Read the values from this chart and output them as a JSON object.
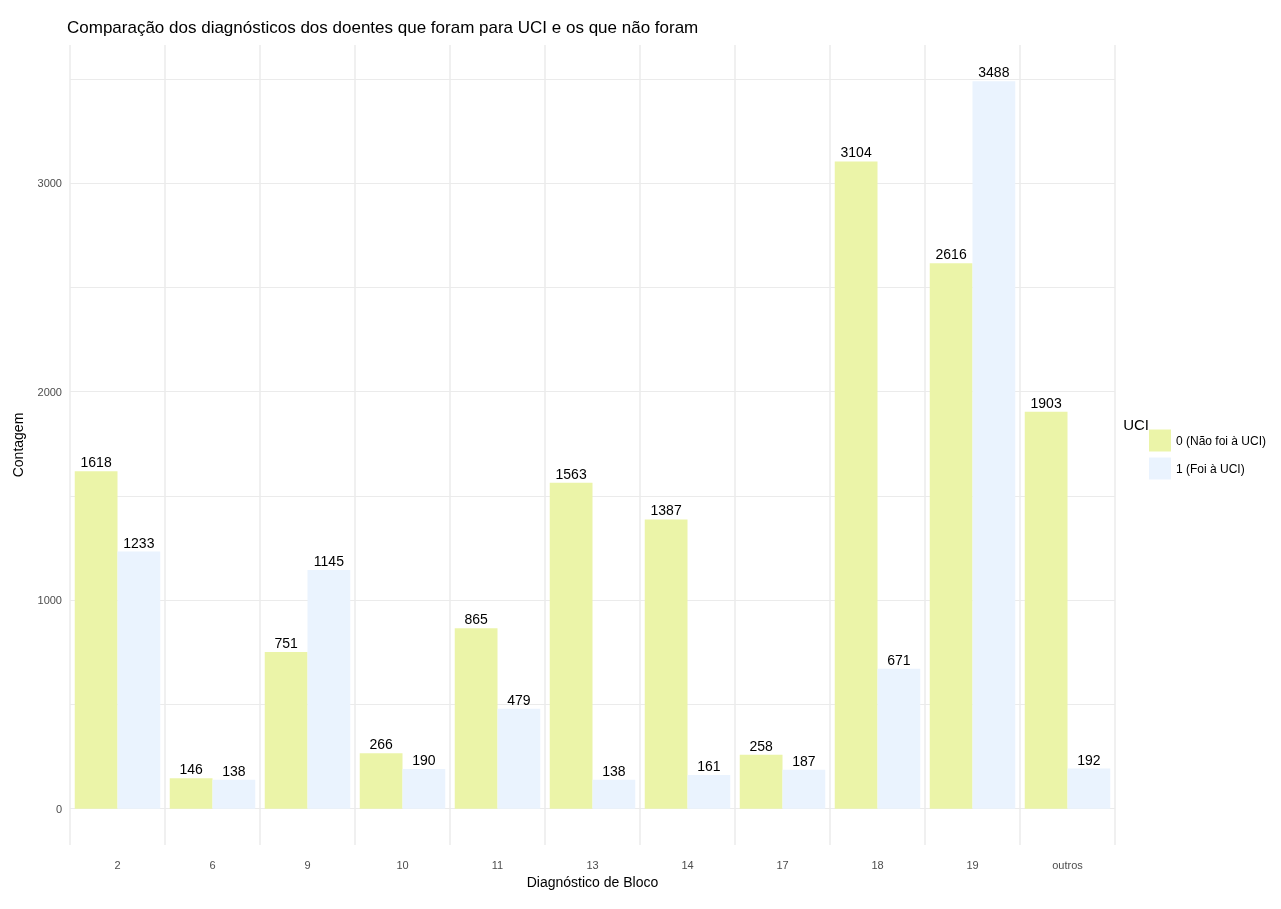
{
  "chart_data": {
    "type": "bar",
    "title": "Comparação dos diagnósticos dos doentes que foram para UCI e os que não foram",
    "xlabel": "Diagnóstico de Bloco",
    "ylabel": "Contagem",
    "legend_title": "UCI",
    "categories": [
      "2",
      "6",
      "9",
      "10",
      "11",
      "13",
      "14",
      "17",
      "18",
      "19",
      "outros"
    ],
    "series": [
      {
        "name": "0 (Não foi à UCI)",
        "color": "#ebf4a8",
        "values": [
          1618,
          146,
          751,
          266,
          865,
          1563,
          1387,
          258,
          3104,
          2616,
          1903
        ]
      },
      {
        "name": "1 (Foi à UCI)",
        "color": "#eaf3fe",
        "values": [
          1233,
          138,
          1145,
          190,
          479,
          138,
          161,
          187,
          671,
          3488,
          192
        ]
      }
    ],
    "ylim": [
      -174.4,
      3662.4
    ],
    "yticks": [
      0,
      {
        "value": 500,
        "label": null
      },
      1000,
      {
        "value": 1500,
        "label": null
      },
      2000,
      {
        "value": 2500,
        "label": null
      },
      3000,
      {
        "value": 3500,
        "label": null
      }
    ],
    "grid": true,
    "legend": "right",
    "data_labels": true
  }
}
